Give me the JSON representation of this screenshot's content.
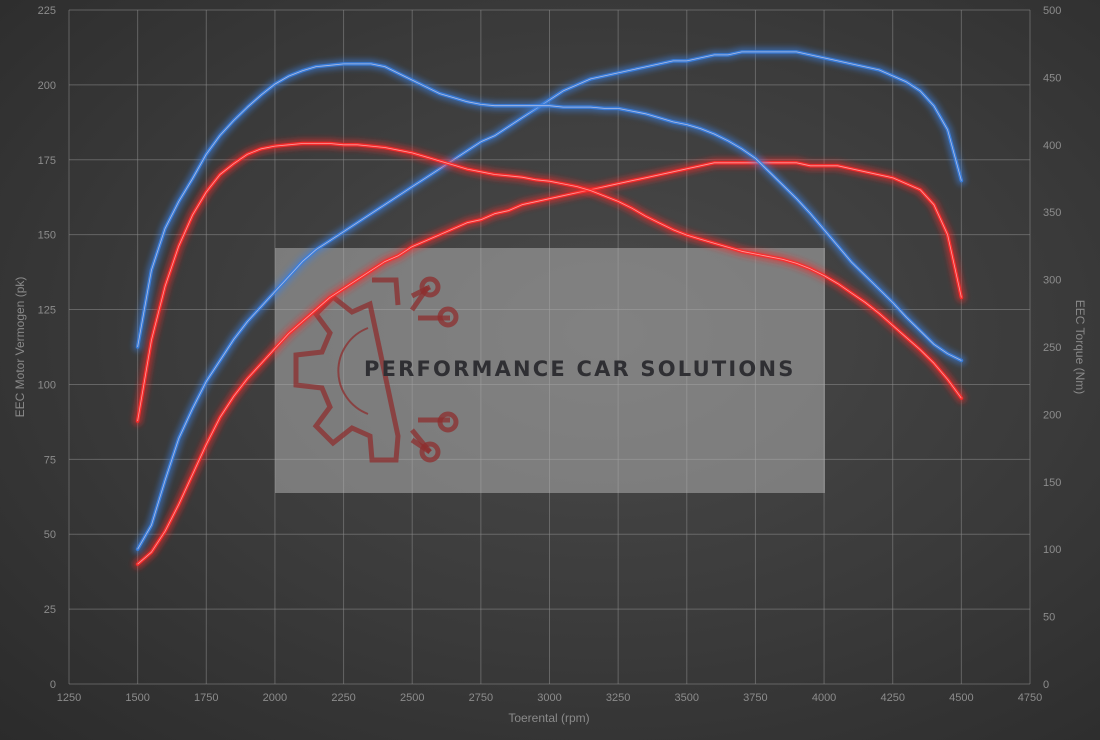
{
  "watermark": {
    "text": "PERFORMANCE CAR SOLUTIONS"
  },
  "chart_data": {
    "type": "line",
    "title": "",
    "xlabel": "Toerental (rpm)",
    "ylabel_left": "EEC Motor Vermogen (pk)",
    "ylabel_right": "EEC Torque (Nm)",
    "xlim": [
      1250,
      4750
    ],
    "ylim_left": [
      0,
      225
    ],
    "ylim_right": [
      0,
      500
    ],
    "x_ticks": [
      "1250",
      "1500",
      "1750",
      "2000",
      "2250",
      "2500",
      "2750",
      "3000",
      "3250",
      "3500",
      "3750",
      "4000",
      "4250",
      "4500",
      "4750"
    ],
    "y_left_ticks": [
      "0",
      "25",
      "50",
      "75",
      "100",
      "125",
      "150",
      "175",
      "200",
      "225"
    ],
    "y_right_ticks": [
      "0",
      "50",
      "100",
      "150",
      "200",
      "250",
      "300",
      "350",
      "400",
      "450",
      "500"
    ],
    "grid": true,
    "legend": "none",
    "series": [
      {
        "axis": "left",
        "color": "#ff2b2b",
        "x": [
          1500,
          1550,
          1600,
          1650,
          1700,
          1750,
          1800,
          1850,
          1900,
          1950,
          2000,
          2050,
          2100,
          2150,
          2200,
          2250,
          2300,
          2350,
          2400,
          2450,
          2500,
          2550,
          2600,
          2650,
          2700,
          2750,
          2800,
          2850,
          2900,
          2950,
          3000,
          3050,
          3100,
          3150,
          3200,
          3250,
          3300,
          3350,
          3400,
          3450,
          3500,
          3550,
          3600,
          3650,
          3700,
          3750,
          3800,
          3850,
          3900,
          3950,
          4000,
          4050,
          4100,
          4150,
          4200,
          4250,
          4300,
          4350,
          4400,
          4450,
          4500
        ],
        "y": [
          40,
          44,
          51,
          60,
          70,
          80,
          89,
          96,
          102,
          107,
          112,
          117,
          121,
          125,
          129,
          132,
          135,
          138,
          141,
          143,
          146,
          148,
          150,
          152,
          154,
          155,
          157,
          158,
          160,
          161,
          162,
          163,
          164,
          165,
          166,
          167,
          168,
          169,
          170,
          171,
          172,
          173,
          174,
          174,
          174,
          174,
          174,
          174,
          174,
          173,
          173,
          173,
          172,
          171,
          170,
          169,
          167,
          165,
          160,
          150,
          129
        ]
      },
      {
        "axis": "left",
        "color": "#3a80e0",
        "x": [
          1500,
          1550,
          1600,
          1650,
          1700,
          1750,
          1800,
          1850,
          1900,
          1950,
          2000,
          2050,
          2100,
          2150,
          2200,
          2250,
          2300,
          2350,
          2400,
          2450,
          2500,
          2550,
          2600,
          2650,
          2700,
          2750,
          2800,
          2850,
          2900,
          2950,
          3000,
          3050,
          3100,
          3150,
          3200,
          3250,
          3300,
          3350,
          3400,
          3450,
          3500,
          3550,
          3600,
          3650,
          3700,
          3750,
          3800,
          3850,
          3900,
          3950,
          4000,
          4050,
          4100,
          4150,
          4200,
          4250,
          4300,
          4350,
          4400,
          4450,
          4500
        ],
        "y": [
          45,
          53,
          68,
          82,
          92,
          101,
          108,
          115,
          121,
          126,
          131,
          136,
          141,
          145,
          148,
          151,
          154,
          157,
          160,
          163,
          166,
          169,
          172,
          175,
          178,
          181,
          183,
          186,
          189,
          192,
          195,
          198,
          200,
          202,
          203,
          204,
          205,
          206,
          207,
          208,
          208,
          209,
          210,
          210,
          211,
          211,
          211,
          211,
          211,
          210,
          209,
          208,
          207,
          206,
          205,
          203,
          201,
          198,
          193,
          185,
          168
        ]
      },
      {
        "axis": "right",
        "color": "#ff2b2b",
        "x": [
          1500,
          1550,
          1600,
          1650,
          1700,
          1750,
          1800,
          1850,
          1900,
          1950,
          2000,
          2050,
          2100,
          2150,
          2200,
          2250,
          2300,
          2350,
          2400,
          2450,
          2500,
          2550,
          2600,
          2650,
          2700,
          2750,
          2800,
          2850,
          2900,
          2950,
          3000,
          3050,
          3100,
          3150,
          3200,
          3250,
          3300,
          3350,
          3400,
          3450,
          3500,
          3550,
          3600,
          3650,
          3700,
          3750,
          3800,
          3850,
          3900,
          3950,
          4000,
          4050,
          4100,
          4150,
          4200,
          4250,
          4300,
          4350,
          4400,
          4450,
          4500
        ],
        "y": [
          195,
          255,
          295,
          325,
          348,
          365,
          378,
          386,
          393,
          397,
          399,
          400,
          401,
          401,
          401,
          400,
          400,
          399,
          398,
          396,
          394,
          391,
          388,
          385,
          382,
          380,
          378,
          377,
          376,
          374,
          373,
          371,
          369,
          366,
          362,
          358,
          353,
          347,
          342,
          337,
          333,
          330,
          327,
          324,
          321,
          319,
          317,
          315,
          312,
          308,
          303,
          297,
          290,
          283,
          275,
          266,
          257,
          248,
          238,
          226,
          212
        ]
      },
      {
        "axis": "right",
        "color": "#3a80e0",
        "x": [
          1500,
          1550,
          1600,
          1650,
          1700,
          1750,
          1800,
          1850,
          1900,
          1950,
          2000,
          2050,
          2100,
          2150,
          2200,
          2250,
          2300,
          2350,
          2400,
          2450,
          2500,
          2550,
          2600,
          2650,
          2700,
          2750,
          2800,
          2850,
          2900,
          2950,
          3000,
          3050,
          3100,
          3150,
          3200,
          3250,
          3300,
          3350,
          3400,
          3450,
          3500,
          3550,
          3600,
          3650,
          3700,
          3750,
          3800,
          3850,
          3900,
          3950,
          4000,
          4050,
          4100,
          4150,
          4200,
          4250,
          4300,
          4350,
          4400,
          4450,
          4500
        ],
        "y": [
          250,
          307,
          338,
          358,
          375,
          393,
          407,
          418,
          428,
          437,
          445,
          451,
          455,
          458,
          459,
          460,
          460,
          460,
          458,
          453,
          448,
          443,
          438,
          435,
          432,
          430,
          429,
          429,
          429,
          429,
          429,
          428,
          428,
          428,
          427,
          427,
          425,
          423,
          420,
          417,
          415,
          412,
          408,
          403,
          397,
          390,
          380,
          370,
          360,
          349,
          337,
          325,
          313,
          303,
          293,
          283,
          272,
          262,
          252,
          245,
          240
        ]
      }
    ]
  }
}
